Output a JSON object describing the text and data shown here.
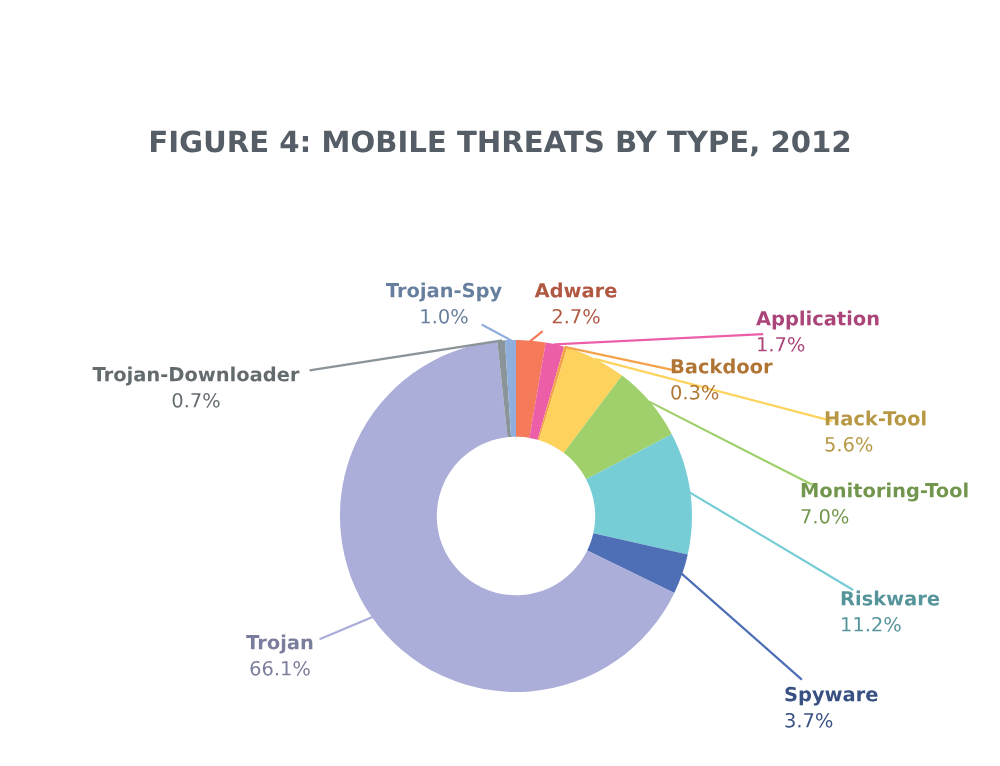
{
  "chart_data": {
    "type": "donut",
    "title": "FIGURE 4: MOBILE THREATS BY TYPE, 2012",
    "categories": [
      "Adware",
      "Application",
      "Backdoor",
      "Hack-Tool",
      "Monitoring-Tool",
      "Riskware",
      "Spyware",
      "Trojan",
      "Trojan-Downloader",
      "Trojan-Spy"
    ],
    "values": [
      2.7,
      1.7,
      0.3,
      5.6,
      7.0,
      11.2,
      3.7,
      66.1,
      0.7,
      1.0
    ],
    "colors": [
      "#f47a5a",
      "#ec5fa8",
      "#f5a34a",
      "#fdd35e",
      "#9fd06b",
      "#76cdd6",
      "#4e6fb5",
      "#abaed8",
      "#8a9499",
      "#8fb0dc"
    ],
    "value_labels": [
      "2.7%",
      "1.7%",
      "0.3%",
      "5.6%",
      "7.0%",
      "11.2%",
      "3.7%",
      "66.1%",
      "0.7%",
      "1.0%"
    ],
    "legend": false
  }
}
